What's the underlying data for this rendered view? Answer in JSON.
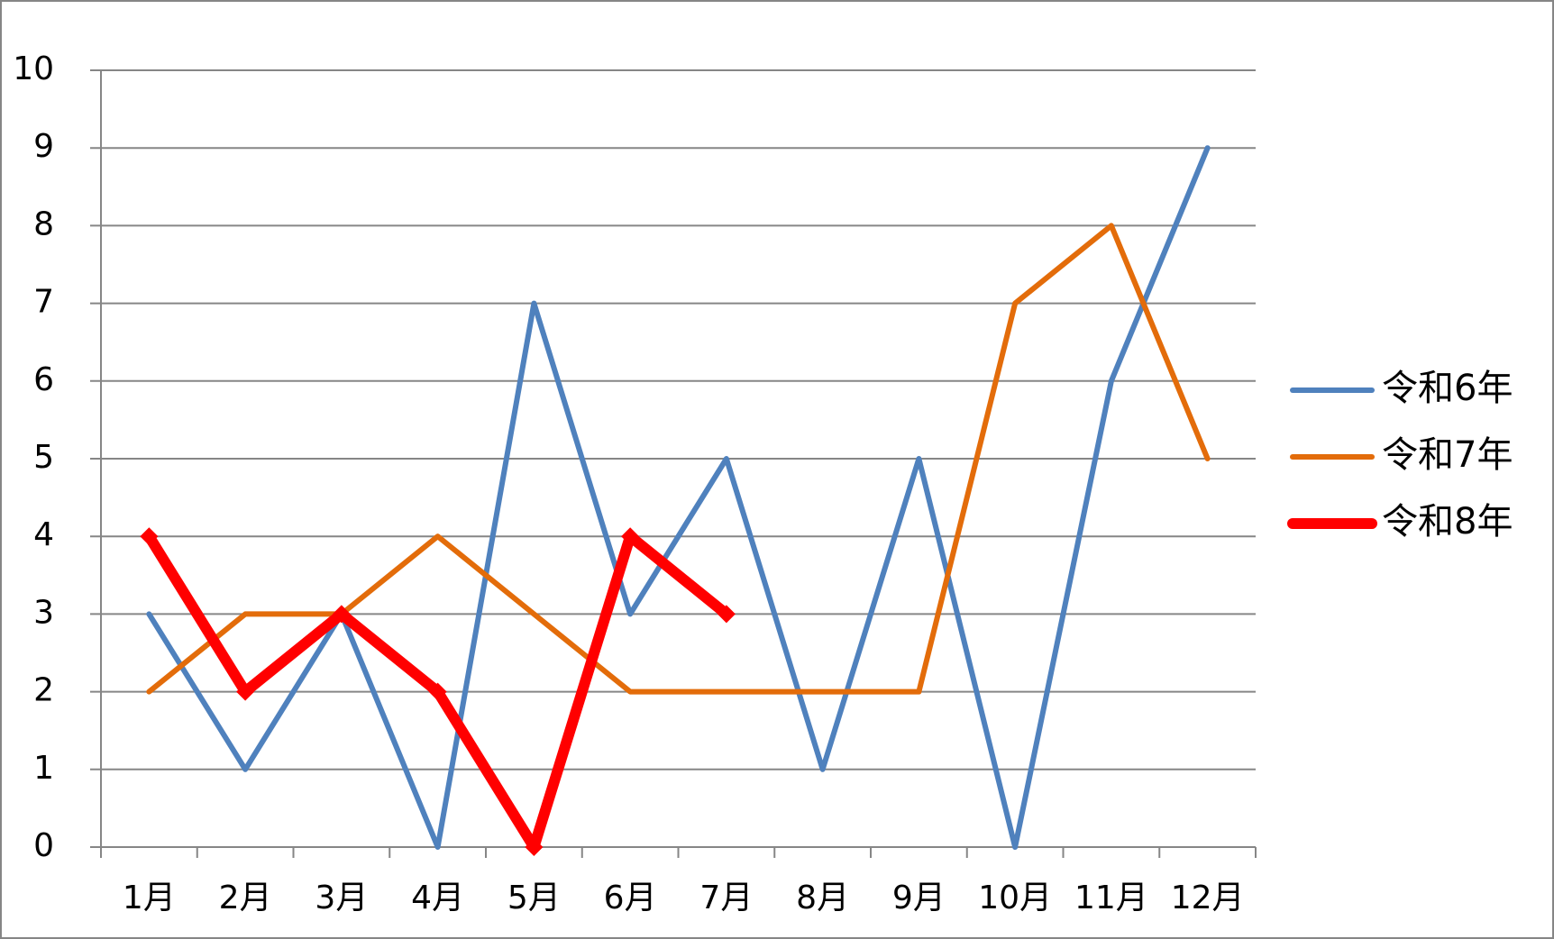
{
  "chart_data": {
    "type": "line",
    "categories": [
      "1月",
      "2月",
      "3月",
      "4月",
      "5月",
      "6月",
      "7月",
      "8月",
      "9月",
      "10月",
      "11月",
      "12月"
    ],
    "series": [
      {
        "name": "令和6年",
        "color": "#4f81bd",
        "values": [
          3,
          1,
          3,
          0,
          7,
          3,
          5,
          1,
          5,
          0,
          6,
          9
        ]
      },
      {
        "name": "令和7年",
        "color": "#e36c0a",
        "values": [
          2,
          3,
          3,
          4,
          3,
          2,
          2,
          2,
          2,
          7,
          8,
          5
        ]
      },
      {
        "name": "令和8年",
        "color": "#ff0000",
        "values": [
          4,
          2,
          3,
          2,
          0,
          4,
          3,
          null,
          null,
          null,
          null,
          null
        ]
      }
    ],
    "ylim": [
      0,
      10
    ],
    "yticks": [
      0,
      1,
      2,
      3,
      4,
      5,
      6,
      7,
      8,
      9,
      10
    ],
    "grid": true,
    "legend": "right"
  }
}
